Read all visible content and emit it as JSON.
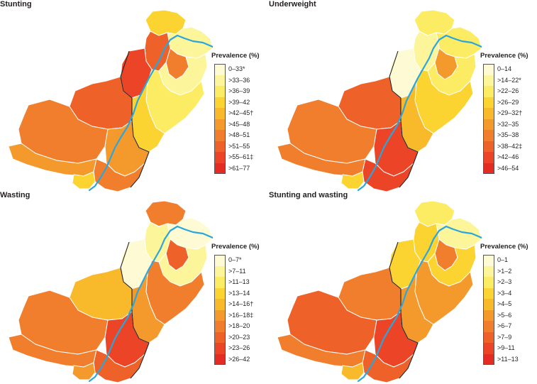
{
  "palette": [
    "#fefbd4",
    "#fdf59a",
    "#fcec63",
    "#fbd431",
    "#f8b92a",
    "#f49a2c",
    "#f07e2d",
    "#ee6129",
    "#eb4426",
    "#e42b24"
  ],
  "river_color": "#2aa6dd",
  "panels": [
    {
      "title": "Stunting",
      "legend_title": "Prevalence (%)",
      "classes": [
        "0–33*",
        ">33–36",
        ">36–39",
        ">39–42",
        ">42–45†",
        ">45–48",
        ">48–51",
        ">51–55",
        ">55–61‡",
        ">61–77"
      ],
      "regions": {
        "north_tip": 3,
        "north_east": 1,
        "kashmir_strip": 6,
        "khyber": 7,
        "fata": 8,
        "islamabad_area": 1,
        "punjab": 2,
        "south_punjab": 3,
        "balochistan_north": 7,
        "balochistan_central": 6,
        "balochistan_south": 5,
        "sindh_north": 5,
        "sindh_south": 6,
        "karachi_tip": 3
      }
    },
    {
      "title": "Underweight",
      "legend_title": "Prevalence (%)",
      "classes": [
        "0–14",
        ">14–22*",
        ">22–26",
        ">26–29",
        ">29–32†",
        ">32–35",
        ">35–38",
        ">38–42‡",
        ">42–46",
        ">46–54"
      ],
      "regions": {
        "north_tip": 2,
        "north_east": 2,
        "kashmir_strip": 5,
        "khyber": 1,
        "fata": 0,
        "islamabad_area": 2,
        "punjab": 3,
        "south_punjab": 4,
        "balochistan_north": 7,
        "balochistan_central": 6,
        "balochistan_south": 6,
        "sindh_north": 8,
        "sindh_south": 8,
        "karachi_tip": 3
      }
    },
    {
      "title": "Wasting",
      "legend_title": "Prevalence (%)",
      "classes": [
        "0–7*",
        ">7–11",
        ">11–13",
        ">13–14",
        ">14–16†",
        ">16–18‡",
        ">18–20",
        ">20–23",
        ">23–26",
        ">26–42"
      ],
      "regions": {
        "north_tip": 6,
        "north_east": 0,
        "kashmir_strip": 7,
        "khyber": 1,
        "fata": 0,
        "islamabad_area": 1,
        "punjab": 6,
        "south_punjab": 5,
        "balochistan_north": 4,
        "balochistan_central": 6,
        "balochistan_south": 6,
        "sindh_north": 8,
        "sindh_south": 7,
        "karachi_tip": 5
      }
    },
    {
      "title": "Stunting and wasting",
      "legend_title": "Prevalence (%)",
      "classes": [
        "0–1",
        ">1–2",
        ">2–3",
        ">3–4",
        ">4–5",
        ">5–6",
        ">6–7",
        ">7–9",
        ">9–11",
        ">11–13"
      ],
      "regions": {
        "north_tip": 2,
        "north_east": 1,
        "kashmir_strip": 6,
        "khyber": 3,
        "fata": 3,
        "islamabad_area": 3,
        "punjab": 5,
        "south_punjab": 5,
        "balochistan_north": 6,
        "balochistan_central": 7,
        "balochistan_south": 6,
        "sindh_north": 8,
        "sindh_south": 7,
        "karachi_tip": 4
      }
    }
  ]
}
